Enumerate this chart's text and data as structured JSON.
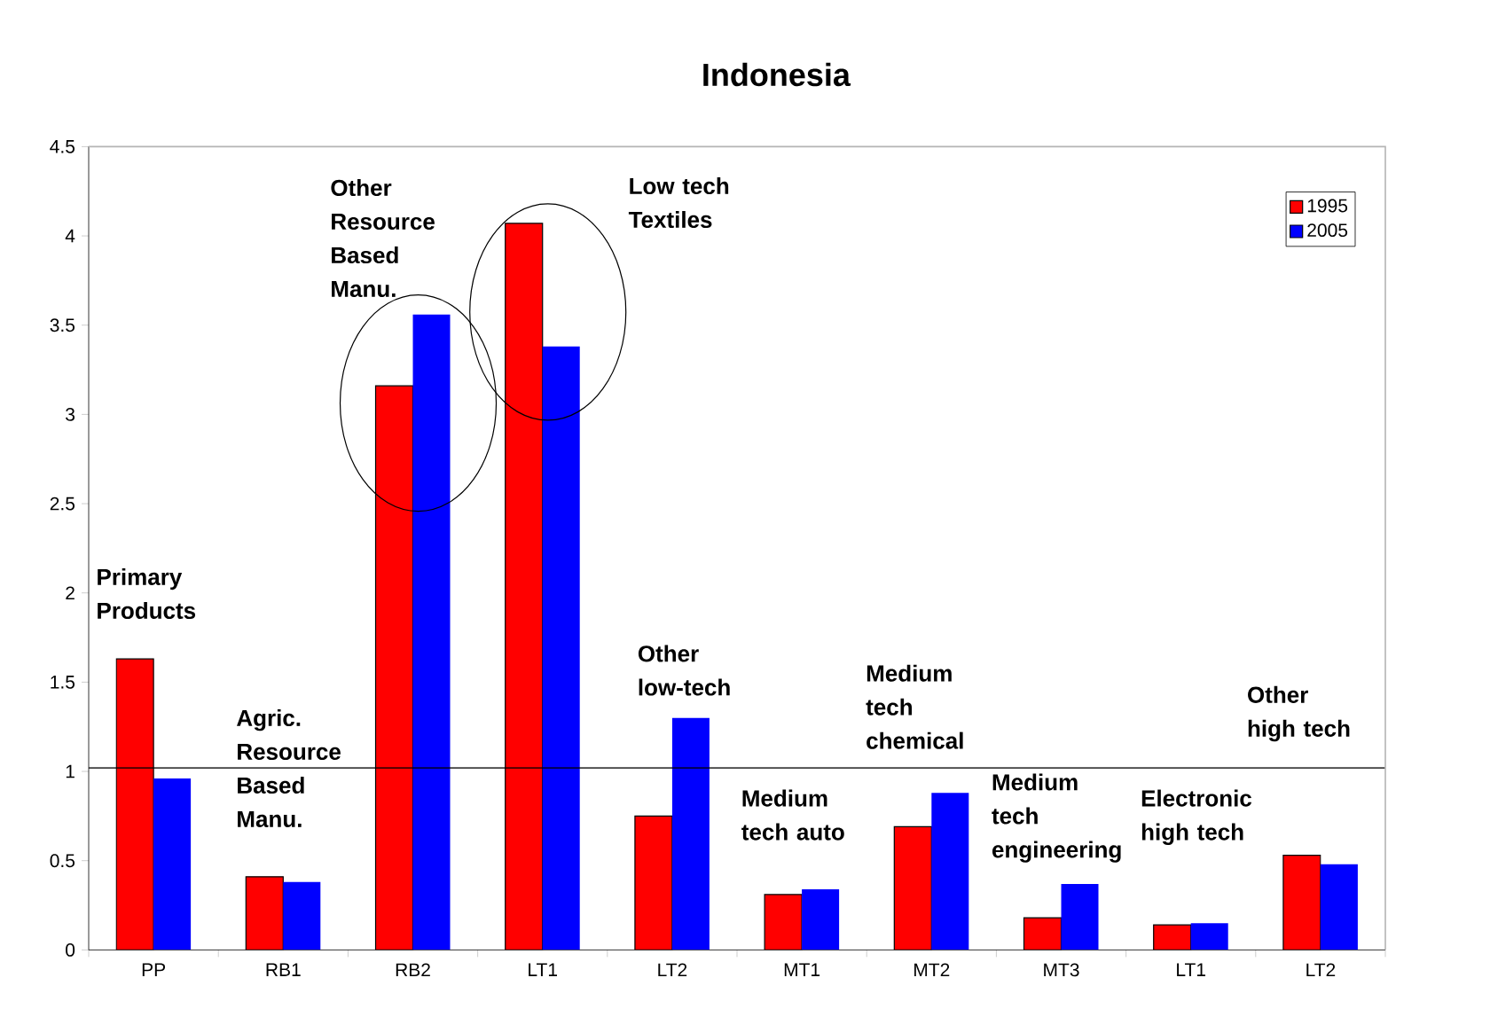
{
  "chart_data": {
    "type": "bar",
    "title": "Indonesia",
    "categories": [
      "PP",
      "RB1",
      "RB2",
      "LT1",
      "LT2",
      "MT1",
      "MT2",
      "MT3",
      "LT1",
      "LT2"
    ],
    "series": [
      {
        "name": "1995",
        "color": "#ff0000",
        "values": [
          1.63,
          0.41,
          3.16,
          4.07,
          0.75,
          0.31,
          0.69,
          0.18,
          0.14,
          0.53
        ]
      },
      {
        "name": "2005",
        "color": "#0000ff",
        "values": [
          0.96,
          0.38,
          3.56,
          3.38,
          1.3,
          0.34,
          0.88,
          0.37,
          0.15,
          0.48
        ]
      }
    ],
    "ylim": [
      0,
      4.5
    ],
    "yticks": [
      0,
      0.5,
      1,
      1.5,
      2,
      2.5,
      3,
      3.5,
      4,
      4.5
    ],
    "legend": "top right",
    "ref_lines": [
      {
        "axis": "y",
        "value": 1.02
      }
    ],
    "annotations": [
      "Primary Products",
      "Agric. Resource Based Manu.",
      "Other Resource Based Manu.",
      "Low tech Textiles",
      "Other low-tech",
      "Medium tech auto",
      "Medium tech chemical",
      "Medium tech engineering",
      "Electronic high tech",
      "Other high tech"
    ]
  }
}
